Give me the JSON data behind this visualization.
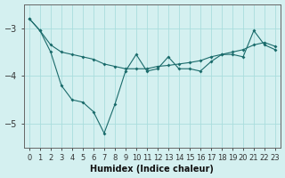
{
  "xlabel": "Humidex (Indice chaleur)",
  "background_color": "#d4f0f0",
  "grid_color": "#aadddd",
  "line_color": "#1a6b6b",
  "x": [
    0,
    1,
    2,
    3,
    4,
    5,
    6,
    7,
    8,
    9,
    10,
    11,
    12,
    13,
    14,
    15,
    16,
    17,
    18,
    19,
    20,
    21,
    22,
    23
  ],
  "curve1": [
    -2.8,
    -3.05,
    -3.35,
    -3.5,
    -3.55,
    -3.6,
    -3.65,
    -3.75,
    -3.8,
    -3.85,
    -3.85,
    -3.85,
    -3.8,
    -3.78,
    -3.75,
    -3.72,
    -3.68,
    -3.6,
    -3.55,
    -3.5,
    -3.45,
    -3.35,
    -3.3,
    -3.38
  ],
  "curve2": [
    -2.8,
    -3.05,
    -3.5,
    -4.2,
    -4.5,
    -4.55,
    -4.75,
    -5.2,
    -4.6,
    -3.9,
    -3.55,
    -3.9,
    -3.85,
    -3.6,
    -3.85,
    -3.85,
    -3.9,
    -3.7,
    -3.55,
    -3.55,
    -3.6,
    -3.05,
    -3.35,
    -3.45
  ],
  "ylim": [
    -5.5,
    -2.5
  ],
  "xlim": [
    -0.5,
    23.5
  ],
  "yticks": [
    -5,
    -4,
    -3
  ],
  "xtick_labels": [
    "0",
    "1",
    "2",
    "3",
    "4",
    "5",
    "6",
    "7",
    "8",
    "9",
    "10",
    "11",
    "12",
    "13",
    "14",
    "15",
    "16",
    "17",
    "18",
    "19",
    "20",
    "21",
    "22",
    "23"
  ],
  "tick_fontsize": 6,
  "label_fontsize": 7
}
